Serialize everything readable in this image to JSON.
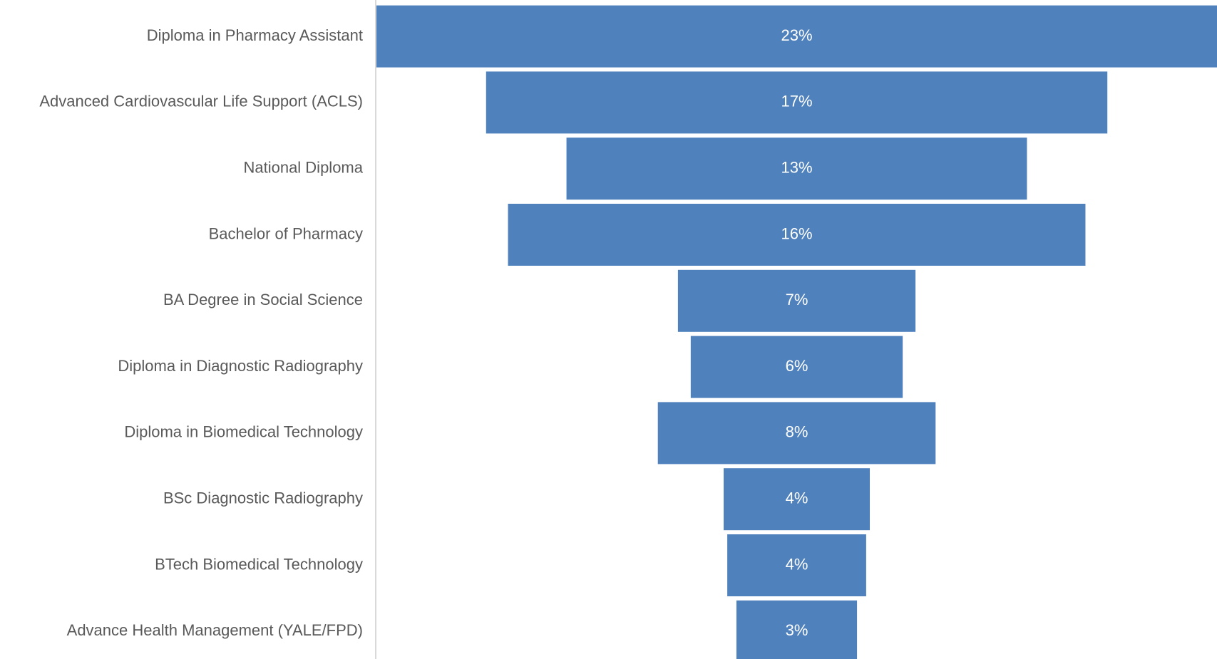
{
  "chart_data": {
    "type": "funnel",
    "categories": [
      "Diploma in Pharmacy Assistant",
      "Advanced Cardiovascular Life Support (ACLS)",
      "National Diploma",
      "Bachelor of Pharmacy",
      "BA Degree in Social Science",
      "Diploma in Diagnostic Radiography",
      "Diploma in Biomedical Technology",
      "BSc Diagnostic Radiography",
      "BTech Biomedical Technology",
      "Advance Health Management (YALE/FPD)"
    ],
    "values": [
      23,
      17,
      12.6,
      15.8,
      6.5,
      5.8,
      7.6,
      4,
      3.8,
      3.3
    ],
    "value_labels": [
      "23%",
      "17%",
      "13%",
      "16%",
      "7%",
      "6%",
      "8%",
      "4%",
      "4%",
      "3%"
    ],
    "color": "#4f81bd"
  }
}
